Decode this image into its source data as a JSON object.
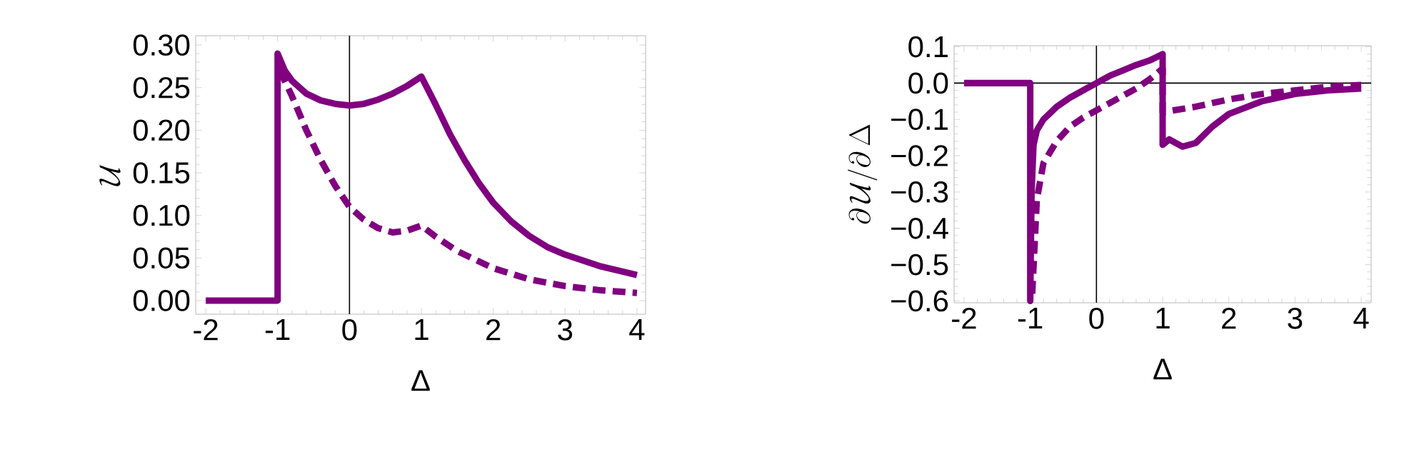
{
  "chart_data": [
    {
      "type": "line",
      "xlabel": "Δ",
      "ylabel": "\\mathcal{U}",
      "xlim": [
        -2.14,
        4.12
      ],
      "ylim": [
        -0.016,
        0.311
      ],
      "xticks": [
        -2,
        -1,
        0,
        1,
        2,
        3,
        4
      ],
      "yticks": [
        {
          "value": 0,
          "label": "0.00"
        },
        {
          "value": 0.05,
          "label": "0.05"
        },
        {
          "value": 0.1,
          "label": "0.10"
        },
        {
          "value": 0.15,
          "label": "0.15"
        },
        {
          "value": 0.2,
          "label": "0.20"
        },
        {
          "value": 0.25,
          "label": "0.25"
        },
        {
          "value": 0.3,
          "label": "0.30"
        }
      ],
      "ref_lines": [
        {
          "axis": "x",
          "value": 0,
          "color": "#000000"
        }
      ],
      "series": [
        {
          "color": "#800080",
          "line_style": "solid",
          "x": [
            -2,
            -1.0,
            -1.0,
            -0.9,
            -0.8,
            -0.6,
            -0.4,
            -0.2,
            0,
            0.2,
            0.4,
            0.6,
            0.8,
            1,
            1.2,
            1.4,
            1.6,
            1.8,
            2,
            2.25,
            2.5,
            2.75,
            3,
            3.5,
            4
          ],
          "values": [
            0,
            0,
            0.29,
            0.27,
            0.258,
            0.243,
            0.235,
            0.231,
            0.229,
            0.231,
            0.236,
            0.243,
            0.252,
            0.263,
            0.23,
            0.195,
            0.165,
            0.138,
            0.115,
            0.093,
            0.076,
            0.063,
            0.054,
            0.04,
            0.03
          ]
        },
        {
          "color": "#800080",
          "line_style": "dashed",
          "x": [
            -0.97,
            -0.8,
            -0.6,
            -0.4,
            -0.2,
            0,
            0.2,
            0.4,
            0.6,
            0.8,
            1,
            1.2,
            1.5,
            2,
            2.5,
            3,
            3.5,
            4
          ],
          "values": [
            0.27,
            0.24,
            0.2,
            0.165,
            0.135,
            0.11,
            0.095,
            0.085,
            0.08,
            0.082,
            0.088,
            0.075,
            0.058,
            0.038,
            0.025,
            0.017,
            0.012,
            0.009
          ]
        }
      ]
    },
    {
      "type": "line",
      "xlabel": "Δ",
      "ylabel": "\\partial\\,\\mathcal{U}/\\partial\\,\\Delta",
      "xlim": [
        -2.15,
        4.15
      ],
      "ylim": [
        -0.605,
        0.103
      ],
      "xticks": [
        -2,
        -1,
        0,
        1,
        2,
        3,
        4
      ],
      "yticks": [
        {
          "value": -0.6,
          "label": "−0.6"
        },
        {
          "value": -0.5,
          "label": "−0.5"
        },
        {
          "value": -0.4,
          "label": "−0.4"
        },
        {
          "value": -0.3,
          "label": "−0.3"
        },
        {
          "value": -0.2,
          "label": "−0.2"
        },
        {
          "value": -0.1,
          "label": "−0.1"
        },
        {
          "value": 0,
          "label": "0.0"
        },
        0.1
      ],
      "ref_lines": [
        {
          "axis": "x",
          "value": 0,
          "color": "#000000"
        },
        {
          "axis": "y",
          "value": 0,
          "color": "#000000"
        }
      ],
      "series": [
        {
          "color": "#800080",
          "line_style": "solid",
          "x": [
            -2,
            -1.0,
            -1.0,
            -0.98,
            -0.95,
            -0.9,
            -0.8,
            -0.6,
            -0.4,
            -0.2,
            0,
            0.2,
            0.4,
            0.6,
            0.8,
            1,
            1,
            1.1,
            1.3,
            1.5,
            1.75,
            2,
            2.5,
            3,
            3.5,
            4
          ],
          "values": [
            0,
            0,
            -0.6,
            -0.3,
            -0.17,
            -0.13,
            -0.1,
            -0.065,
            -0.04,
            -0.02,
            0,
            0.02,
            0.035,
            0.05,
            0.062,
            0.08,
            -0.17,
            -0.155,
            -0.175,
            -0.165,
            -0.12,
            -0.085,
            -0.05,
            -0.03,
            -0.02,
            -0.015
          ]
        },
        {
          "color": "#800080",
          "line_style": "dashed",
          "x": [
            -0.97,
            -0.9,
            -0.8,
            -0.6,
            -0.4,
            -0.2,
            0,
            0.2,
            0.4,
            0.6,
            0.8,
            1,
            1,
            1.5,
            2,
            2.5,
            3,
            3.5,
            4
          ],
          "values": [
            -0.58,
            -0.32,
            -0.22,
            -0.16,
            -0.12,
            -0.095,
            -0.075,
            -0.055,
            -0.035,
            -0.015,
            0.01,
            0.04,
            -0.08,
            -0.065,
            -0.045,
            -0.03,
            -0.02,
            -0.01,
            -0.005
          ]
        }
      ]
    }
  ]
}
